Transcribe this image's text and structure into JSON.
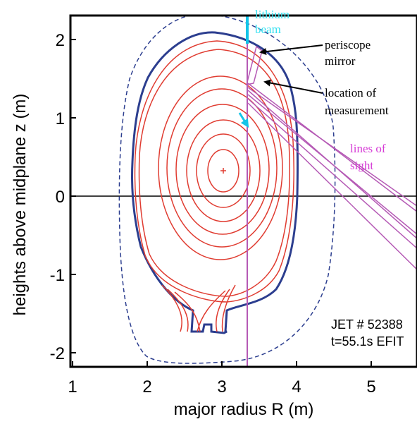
{
  "x_axis": {
    "label": "major radius R (m)",
    "ticks": [
      "1",
      "2",
      "3",
      "4",
      "5"
    ]
  },
  "y_axis": {
    "label": "heights above midplane z (m)",
    "ticks": [
      "2",
      "1",
      "0",
      "-1",
      "-2"
    ]
  },
  "annotations": {
    "beam_line1": "lithium",
    "beam_line2": "beam",
    "periscope_line1": "periscope",
    "periscope_line2": "mirror",
    "location_line1": "location of",
    "location_line2": "measurement",
    "sight_line1": "lines of",
    "sight_line2": "sight",
    "shot_line1": "JET # 52388",
    "shot_line2": "t=55.1s EFIT"
  },
  "colors": {
    "flux_surfaces": "#e03c31",
    "separatrix": "#2c3e8f",
    "vessel": "#2c3e8f",
    "beam": "#13c4e8",
    "lines_of_sight": "#b55ab5",
    "sight_label": "#d63cd6",
    "beam_label": "#33e0f0"
  }
}
